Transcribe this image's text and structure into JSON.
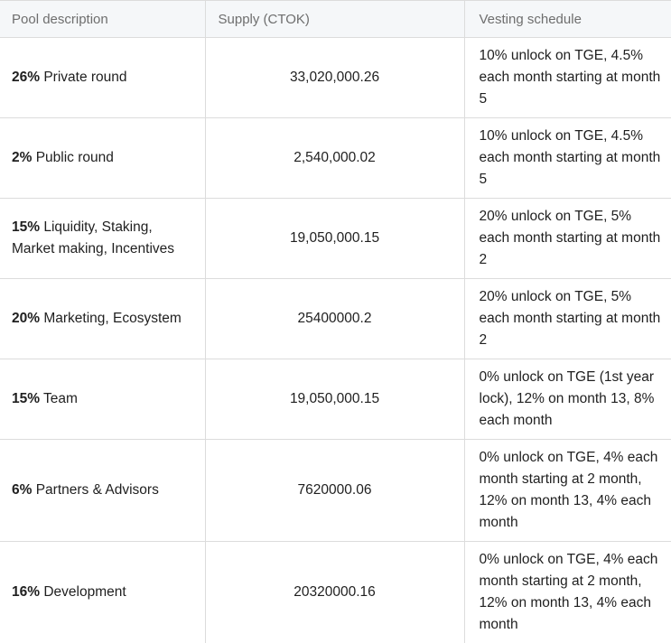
{
  "headers": {
    "pool": "Pool description",
    "supply": "Supply (CTOK)",
    "vesting": "Vesting schedule"
  },
  "rows": [
    {
      "percent": "26%",
      "label": " Private round",
      "supply": "33,020,000.26",
      "vesting": "10% unlock on TGE, 4.5% each month starting at month 5"
    },
    {
      "percent": "2%",
      "label": " Public round",
      "supply": "2,540,000.02",
      "vesting": "10% unlock on TGE, 4.5% each month starting at month 5"
    },
    {
      "percent": "15%",
      "label": " Liquidity, Staking, Market making, Incentives",
      "supply": "19,050,000.15",
      "vesting": "20% unlock on TGE, 5% each month starting at month 2"
    },
    {
      "percent": "20%",
      "label": " Marketing, Ecosystem",
      "supply": "25400000.2",
      "vesting": "20% unlock on TGE, 5% each month starting at month 2"
    },
    {
      "percent": "15%",
      "label": " Team",
      "supply": "19,050,000.15",
      "vesting": "0% unlock on TGE (1st year lock), 12% on month 13, 8% each month"
    },
    {
      "percent": "6%",
      "label": " Partners & Advisors",
      "supply": "7620000.06",
      "vesting": "0% unlock on TGE, 4% each month starting at 2 month, 12% on month 13, 4% each month"
    },
    {
      "percent": "16%",
      "label": " Development",
      "supply": "20320000.16",
      "vesting": "0% unlock on TGE, 4% each month starting at 2 month, 12% on month 13, 4% each month"
    }
  ]
}
